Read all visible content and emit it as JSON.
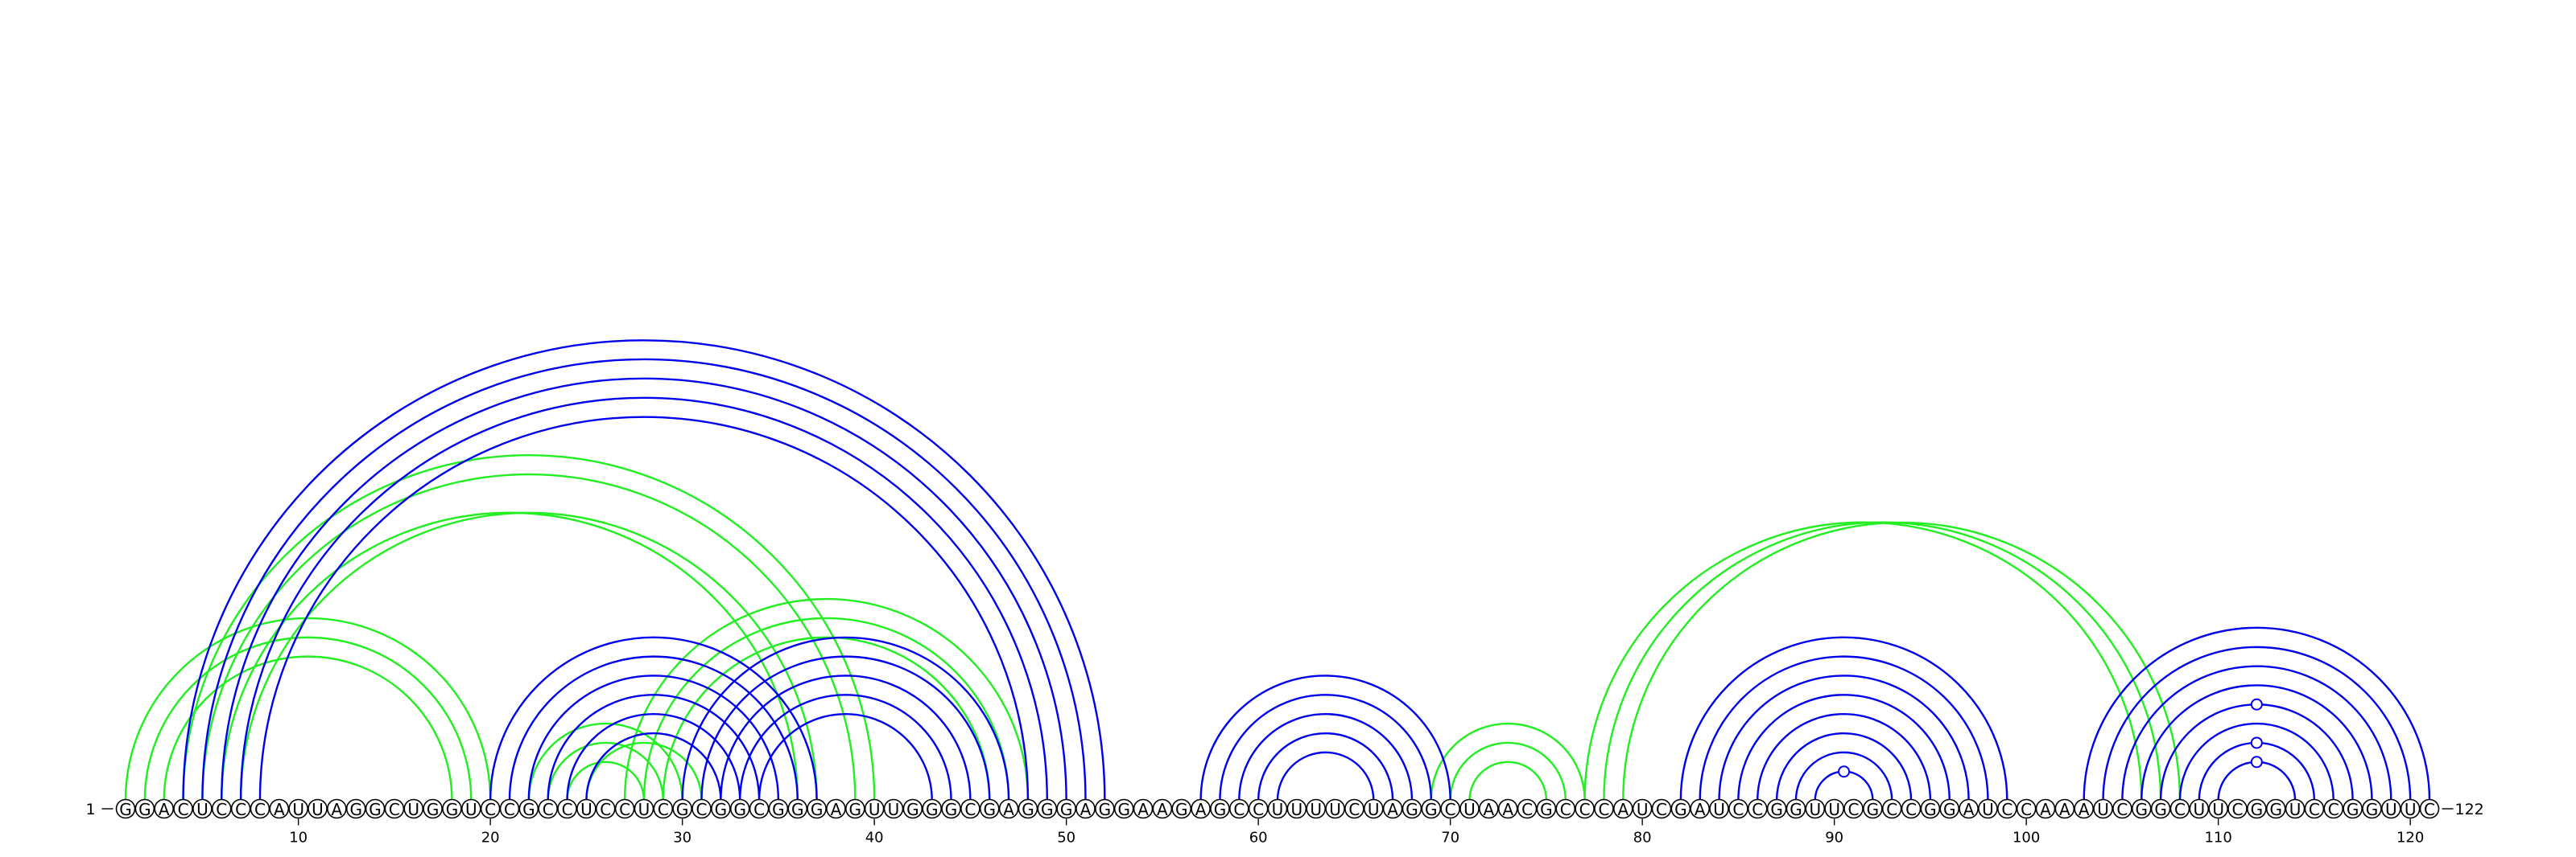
{
  "diagram": {
    "sequence": "GGACUCCCAUUAGGCUGGUCCGCCUCCUCGCGGCGGGAGUUGGGCGAGGGAGGAAGAGCCUUUUCUAGGCUAACGCCCAUCGAUCCGGUUCGCCGGAUCCAAAUCGGCUUCGGUCCGGUUC",
    "start_label": "1",
    "end_label": "122",
    "ticks": [
      10,
      20,
      30,
      40,
      50,
      60,
      70,
      80,
      90,
      100,
      110,
      120
    ],
    "colors": {
      "blue": "#0000ee",
      "green": "#22ee22"
    },
    "loop_marker_color": "blue",
    "blue_pairs": [
      [
        4,
        52
      ],
      [
        5,
        51
      ],
      [
        6,
        50
      ],
      [
        7,
        49
      ],
      [
        8,
        48
      ],
      [
        20,
        37
      ],
      [
        21,
        36
      ],
      [
        22,
        35
      ],
      [
        23,
        34
      ],
      [
        24,
        33
      ],
      [
        25,
        32
      ],
      [
        30,
        47
      ],
      [
        31,
        46
      ],
      [
        32,
        45
      ],
      [
        33,
        44
      ],
      [
        34,
        43
      ],
      [
        57,
        70
      ],
      [
        58,
        69
      ],
      [
        59,
        68
      ],
      [
        60,
        67
      ],
      [
        61,
        66
      ],
      [
        82,
        99
      ],
      [
        83,
        98
      ],
      [
        84,
        97
      ],
      [
        85,
        96
      ],
      [
        86,
        95
      ],
      [
        87,
        94
      ],
      [
        88,
        93
      ],
      [
        89,
        92
      ],
      [
        103,
        121
      ],
      [
        104,
        120
      ],
      [
        105,
        119
      ],
      [
        106,
        118
      ],
      [
        107,
        117
      ],
      [
        108,
        116
      ],
      [
        109,
        115
      ],
      [
        110,
        114
      ]
    ],
    "green_pairs": [
      [
        1,
        20
      ],
      [
        2,
        19
      ],
      [
        3,
        18
      ],
      [
        6,
        36
      ],
      [
        7,
        37
      ],
      [
        5,
        39
      ],
      [
        4,
        40
      ],
      [
        22,
        30
      ],
      [
        23,
        29
      ],
      [
        24,
        28
      ],
      [
        25,
        31
      ],
      [
        27,
        48
      ],
      [
        28,
        47
      ],
      [
        29,
        46
      ],
      [
        69,
        77
      ],
      [
        70,
        76
      ],
      [
        71,
        75
      ],
      [
        77,
        106
      ],
      [
        78,
        107
      ],
      [
        79,
        108
      ]
    ],
    "loop_markers": [
      {
        "pair": [
          110,
          114
        ],
        "fraction": 0.5
      },
      {
        "pair": [
          109,
          115
        ],
        "fraction": 0.5
      },
      {
        "pair": [
          107,
          117
        ],
        "fraction": 0.5
      },
      {
        "pair": [
          89,
          92
        ],
        "fraction": 0.5
      }
    ]
  }
}
